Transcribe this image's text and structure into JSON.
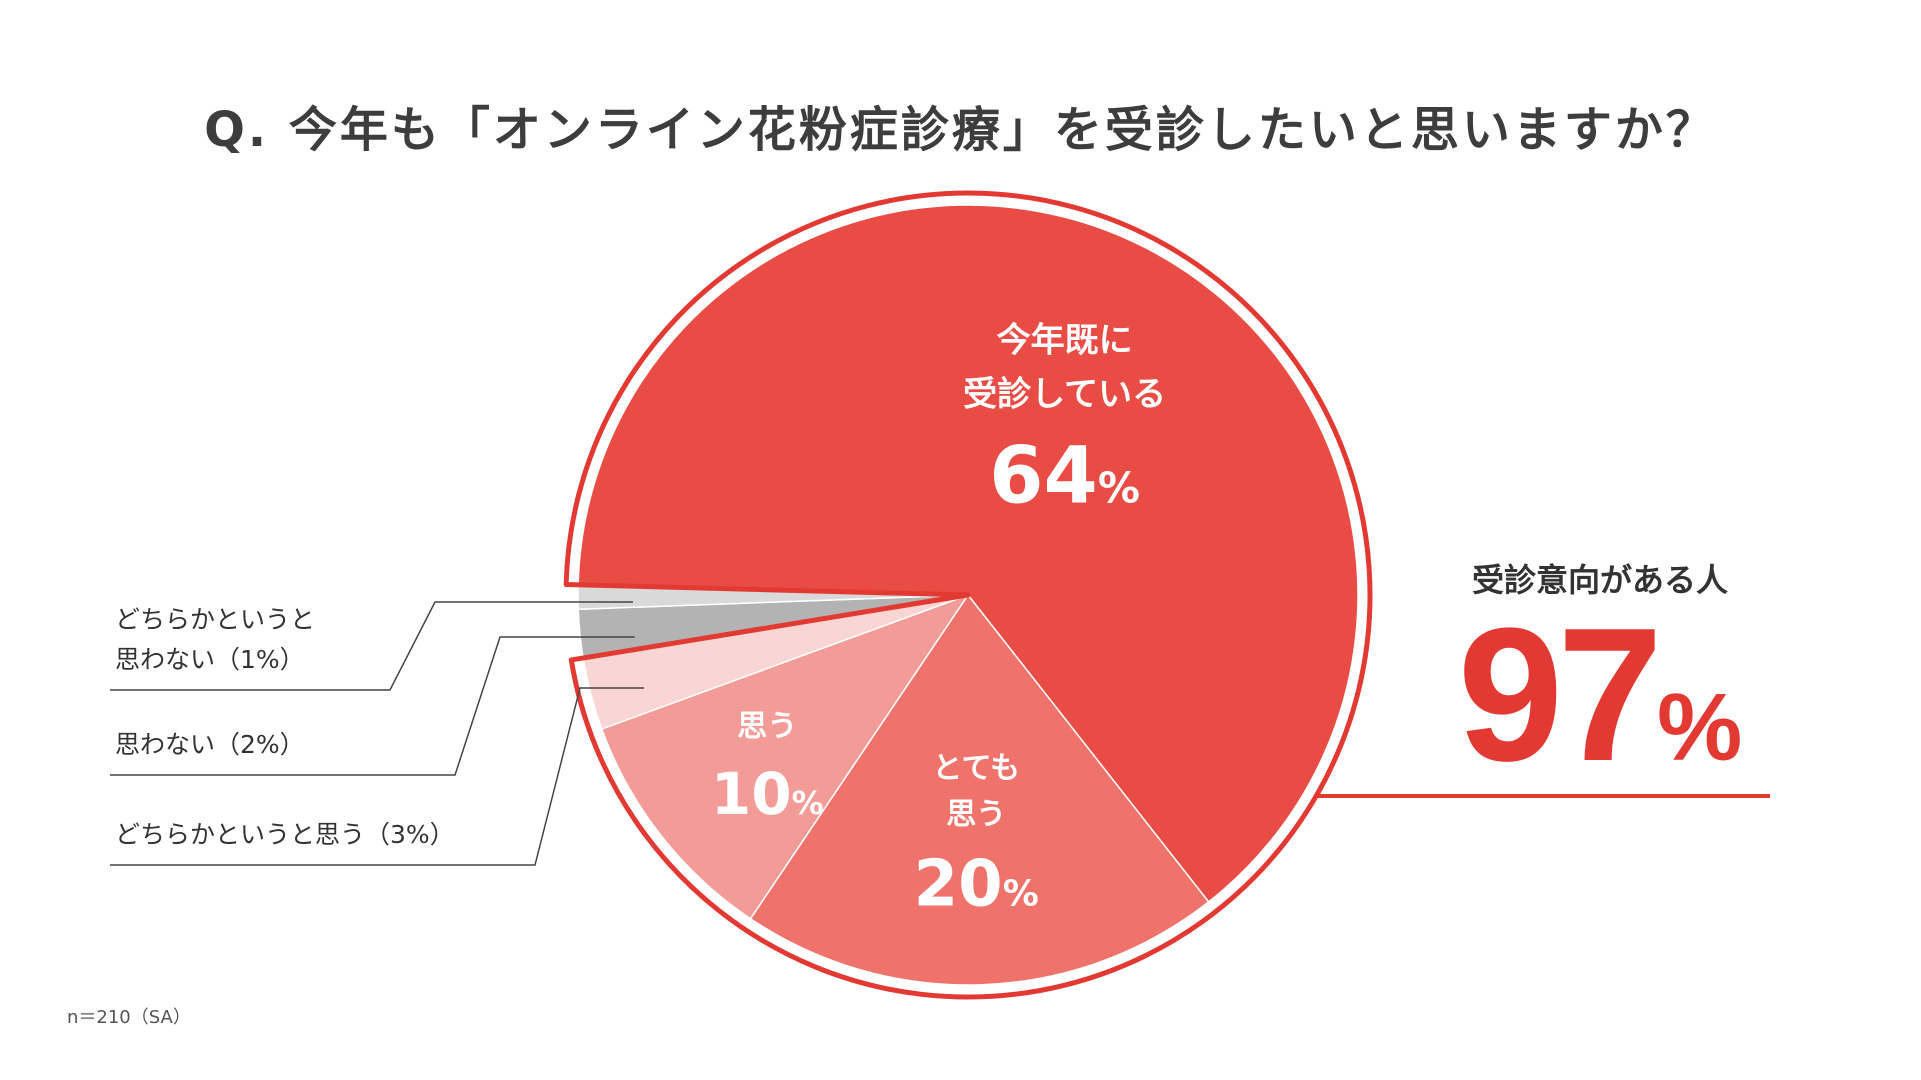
{
  "chart_data": {
    "type": "pie",
    "title": "Q. 今年も「オンライン花粉症診療」を受診したいと思いますか？",
    "slices": [
      {
        "label": "今年既に受診している",
        "value": 64,
        "color": "#e84c44"
      },
      {
        "label": "とても思う",
        "value": 20,
        "color": "#ef726b"
      },
      {
        "label": "思う",
        "value": 10,
        "color": "#f39b96"
      },
      {
        "label": "どちらかというと思う",
        "value": 3,
        "color": "#f9d6d4"
      },
      {
        "label": "思わない",
        "value": 2,
        "color": "#b3b3b3"
      },
      {
        "label": "どちらかというと思わない",
        "value": 1,
        "color": "#d9d9d9"
      }
    ],
    "inside_labels": [
      {
        "lines": [
          "今年既に",
          "受診している"
        ],
        "value": "64",
        "unit": "%"
      },
      {
        "lines": [
          "とても",
          "思う"
        ],
        "value": "20",
        "unit": "%"
      },
      {
        "lines": [
          "思う"
        ],
        "value": "10",
        "unit": "%"
      }
    ],
    "outside_labels": [
      {
        "lines": [
          "どちらかというと",
          "思わない（1%）"
        ]
      },
      {
        "lines": [
          "思わない（2%）"
        ]
      },
      {
        "lines": [
          "どちらかというと思う（3%）"
        ]
      }
    ],
    "callout": {
      "label": "受診意向がある人",
      "value": "97",
      "unit": "%"
    },
    "note": "n＝210（SA）"
  },
  "colors": {
    "accent": "#e23a33",
    "outline": "#e23a33"
  }
}
